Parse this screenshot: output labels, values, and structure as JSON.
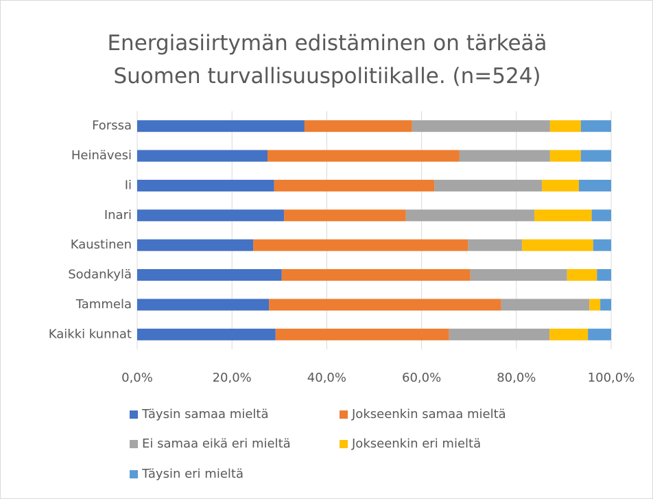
{
  "chart_data": {
    "type": "stacked_barh",
    "title": "Energiasiirtymän edistäminen on tärkeää Suomen turvallisuuspolitiikalle. (n=524)",
    "categories": [
      "Forssa",
      "Heinävesi",
      "Ii",
      "Inari",
      "Kaustinen",
      "Sodankylä",
      "Tammela",
      "Kaikki kunnat"
    ],
    "series": [
      {
        "name": "Täysin samaa mieltä",
        "color": "#4472c4",
        "values": [
          35.3,
          27.5,
          28.9,
          31.0,
          24.5,
          30.5,
          27.8,
          29.2
        ]
      },
      {
        "name": "Jokseenkin samaa mieltä",
        "color": "#ed7d31",
        "values": [
          22.7,
          40.5,
          33.8,
          25.7,
          45.3,
          39.8,
          49.0,
          36.6
        ]
      },
      {
        "name": "Ei samaa eikä eri mieltä",
        "color": "#a5a5a5",
        "values": [
          29.1,
          19.1,
          22.7,
          27.1,
          11.4,
          20.4,
          18.6,
          21.2
        ]
      },
      {
        "name": "Jokseenkin eri mieltä",
        "color": "#ffc000",
        "values": [
          6.5,
          6.5,
          7.8,
          12.1,
          15.0,
          6.3,
          2.3,
          8.1
        ]
      },
      {
        "name": "Täysin eri mieltä",
        "color": "#5b9bd5",
        "values": [
          6.4,
          6.4,
          6.8,
          4.1,
          3.8,
          3.0,
          2.3,
          4.9
        ]
      }
    ],
    "xlim": [
      0,
      100
    ],
    "xticks": [
      {
        "value": 0,
        "label": "0,0%"
      },
      {
        "value": 20,
        "label": "20,0%"
      },
      {
        "value": 40,
        "label": "40,0%"
      },
      {
        "value": 60,
        "label": "60,0%"
      },
      {
        "value": 80,
        "label": "80,0%"
      },
      {
        "value": 100,
        "label": "100,0%"
      }
    ],
    "grid": true
  }
}
